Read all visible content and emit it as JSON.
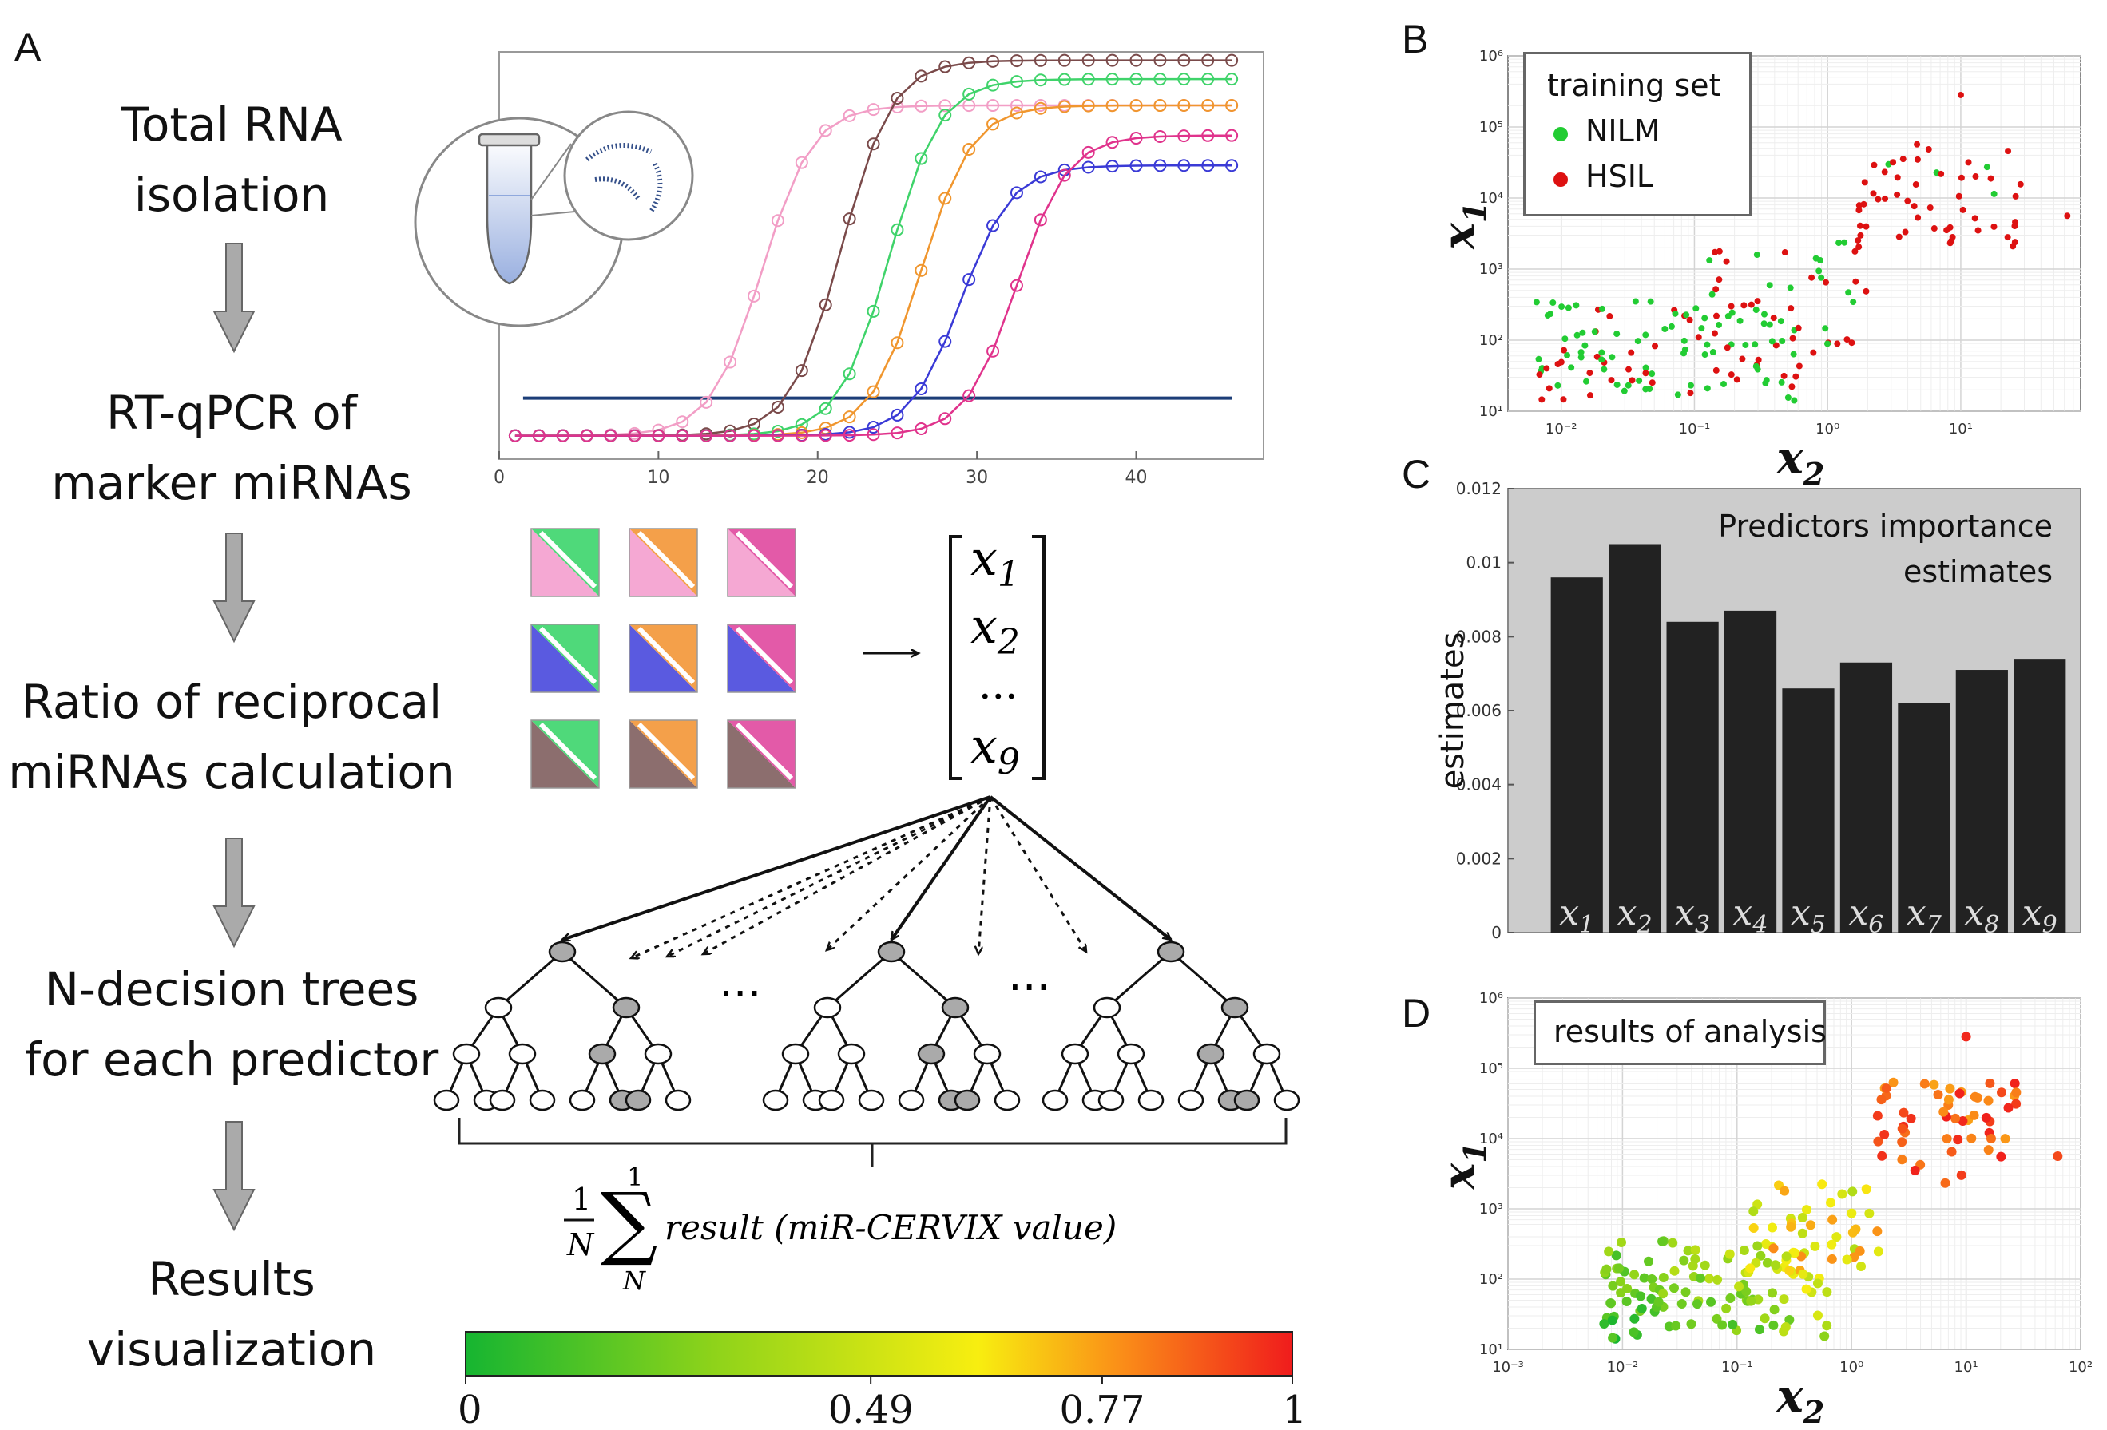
{
  "panels": {
    "a": "A",
    "b": "B",
    "c": "C",
    "d": "D"
  },
  "steps": {
    "s1": [
      "Total RNA",
      "isolation"
    ],
    "s2": [
      "RT-qPCR of",
      "marker miRNAs"
    ],
    "s3": [
      "Ratio of reciprocal",
      "miRNAs calculation"
    ],
    "s4": [
      "N-decision trees",
      "for each predictor"
    ],
    "s5": [
      "Results",
      "visualization"
    ]
  },
  "qpcr_chart": {
    "type": "line",
    "xticks": [
      0,
      10,
      20,
      30,
      40
    ],
    "xlim": [
      0,
      48
    ],
    "threshold_level": 0.12,
    "series": [
      {
        "color": "#f29ec6",
        "midpoint": 16.5,
        "plateau": 0.88
      },
      {
        "color": "#7a4a4a",
        "midpoint": 21.5,
        "plateau": 1.0
      },
      {
        "color": "#3fd36a",
        "midpoint": 24.5,
        "plateau": 0.95
      },
      {
        "color": "#f0962e",
        "midpoint": 26.5,
        "plateau": 0.88
      },
      {
        "color": "#3a3ad6",
        "midpoint": 29.0,
        "plateau": 0.72
      },
      {
        "color": "#e0338c",
        "midpoint": 32.5,
        "plateau": 0.8
      }
    ]
  },
  "ratio_grid": {
    "rows": [
      "#5a5ae0",
      "#8c6e6e",
      "#f5a8d3"
    ],
    "cols": [
      "#4fd97a",
      "#f4a04a",
      "#e35aa8"
    ]
  },
  "vector": {
    "items": [
      "x",
      "x",
      "x"
    ],
    "subs": [
      "1",
      "2",
      "9"
    ],
    "dots": "..."
  },
  "forest": {
    "ellipsis": "..."
  },
  "formula": {
    "frac_num": "1",
    "frac_den": "N",
    "sum_top": "1",
    "sum_bottom": "N",
    "text": "result (miR-CERVIX value)",
    "sum_symbol": "∑"
  },
  "colorbar": {
    "ticks": [
      "0",
      "0.49",
      "0.77",
      "1"
    ],
    "tick_values": [
      0,
      0.49,
      0.77,
      1
    ],
    "colors": [
      "#16b531",
      "#8ed31a",
      "#f8ee10",
      "#fa8a18",
      "#f01c1c"
    ]
  },
  "scatter_b": {
    "xlabel": "x",
    "xlabel_sub": "2",
    "ylabel": "x",
    "ylabel_sub": "1",
    "xlim_log10": [
      -2.4,
      1.9
    ],
    "ylim_log10": [
      1,
      6
    ],
    "xticks": [
      "10⁻²",
      "10⁻¹",
      "10⁰",
      "10¹"
    ],
    "xtick_log10": [
      -2,
      -1,
      0,
      1
    ],
    "yticks": [
      "10¹",
      "10²",
      "10³",
      "10⁴",
      "10⁵",
      "10⁶"
    ],
    "ytick_log10": [
      1,
      2,
      3,
      4,
      5,
      6
    ],
    "legend_title": "training set",
    "legend": [
      {
        "label": "NILM",
        "color": "#22cc33"
      },
      {
        "label": "HSIL",
        "color": "#dd1111"
      }
    ]
  },
  "bar_c": {
    "type": "bar",
    "categories": [
      "x1",
      "x2",
      "x3",
      "x4",
      "x5",
      "x6",
      "x7",
      "x8",
      "x9"
    ],
    "cat_letter": "x",
    "cat_subs": [
      "1",
      "2",
      "3",
      "4",
      "5",
      "6",
      "7",
      "8",
      "9"
    ],
    "values": [
      0.0096,
      0.0105,
      0.0084,
      0.0087,
      0.0066,
      0.0073,
      0.0062,
      0.0071,
      0.0074
    ],
    "ylim": [
      0,
      0.012
    ],
    "yticks": [
      "0",
      "0.002",
      "0.004",
      "0.006",
      "0.008",
      "0.01",
      "0.012"
    ],
    "ytick_values": [
      0,
      0.002,
      0.004,
      0.006,
      0.008,
      0.01,
      0.012
    ],
    "ylabel": "estimates",
    "title_lines": [
      "Predictors importance",
      "estimates"
    ],
    "bar_color": "#222222",
    "bg_color": "#cccccc"
  },
  "scatter_d": {
    "xlabel": "x",
    "xlabel_sub": "2",
    "ylabel": "x",
    "ylabel_sub": "1",
    "xlim_log10": [
      -3,
      2
    ],
    "ylim_log10": [
      1,
      6
    ],
    "xticks": [
      "10⁻³",
      "10⁻²",
      "10⁻¹",
      "10⁰",
      "10¹",
      "10²"
    ],
    "xtick_log10": [
      -3,
      -2,
      -1,
      0,
      1,
      2
    ],
    "yticks": [
      "10¹",
      "10²",
      "10³",
      "10⁴",
      "10⁵",
      "10⁶"
    ],
    "ytick_log10": [
      1,
      2,
      3,
      4,
      5,
      6
    ],
    "title": "results of analysis"
  }
}
